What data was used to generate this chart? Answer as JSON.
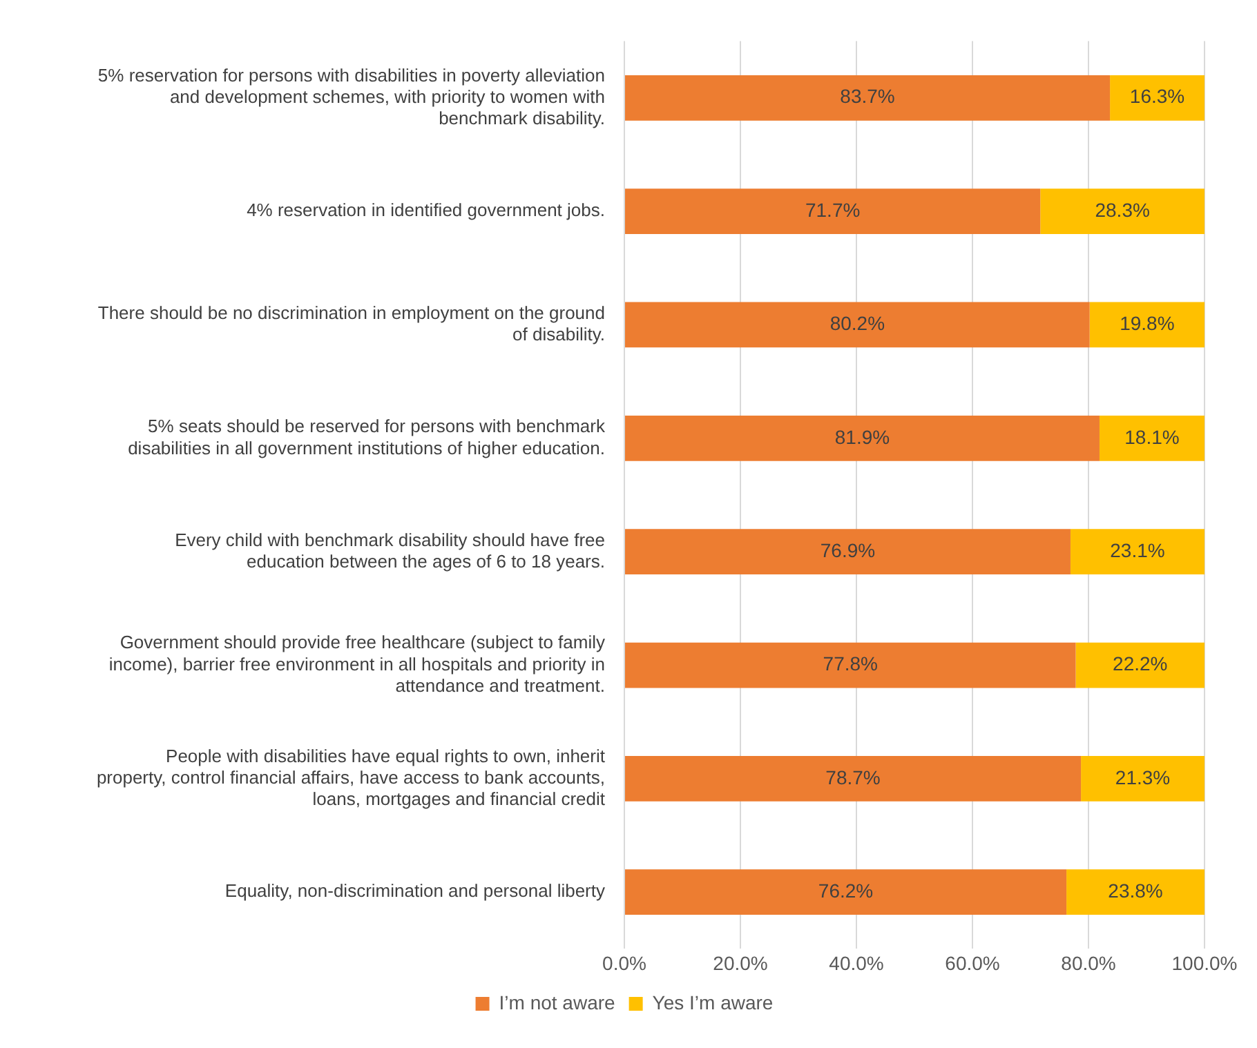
{
  "chart_data": {
    "type": "bar",
    "orientation": "horizontal",
    "stacked": true,
    "categories": [
      "5% reservation for persons with disabilities in poverty alleviation and development schemes, with priority to women with benchmark disability.",
      "4% reservation in identified government jobs.",
      "There should be no discrimination in employment on the ground of disability.",
      "5% seats should be reserved for persons with benchmark disabilities in all government institutions of higher education.",
      "Every child with benchmark disability should have free education between the ages of 6 to 18 years.",
      "Government should provide free healthcare (subject to family income), barrier free environment in all hospitals and priority in attendance and treatment.",
      "People with disabilities have equal rights to own, inherit property, control financial affairs, have access to bank accounts, loans, mortgages and financial credit",
      "Equality, non-discrimination and personal liberty"
    ],
    "series": [
      {
        "name": "I’m not aware",
        "color": "#ed7d31",
        "values": [
          83.7,
          71.7,
          80.2,
          81.9,
          76.9,
          77.8,
          78.7,
          76.2
        ],
        "value_labels": [
          "83.7%",
          "71.7%",
          "80.2%",
          "81.9%",
          "76.9%",
          "77.8%",
          "78.7%",
          "76.2%"
        ]
      },
      {
        "name": "Yes I’m aware",
        "color": "#ffc000",
        "values": [
          16.3,
          28.3,
          19.8,
          18.1,
          23.1,
          22.2,
          21.3,
          23.8
        ],
        "value_labels": [
          "16.3%",
          "28.3%",
          "19.8%",
          "18.1%",
          "23.1%",
          "22.2%",
          "21.3%",
          "23.8%"
        ]
      }
    ],
    "xlim": [
      0,
      100
    ],
    "xticks": [
      {
        "value": 0,
        "label": "0.0%"
      },
      {
        "value": 20,
        "label": "20.0%"
      },
      {
        "value": 40,
        "label": "40.0%"
      },
      {
        "value": 60,
        "label": "60.0%"
      },
      {
        "value": 80,
        "label": "80.0%"
      },
      {
        "value": 100,
        "label": "100.0%"
      }
    ],
    "grid": "x",
    "legend": "bottom"
  }
}
